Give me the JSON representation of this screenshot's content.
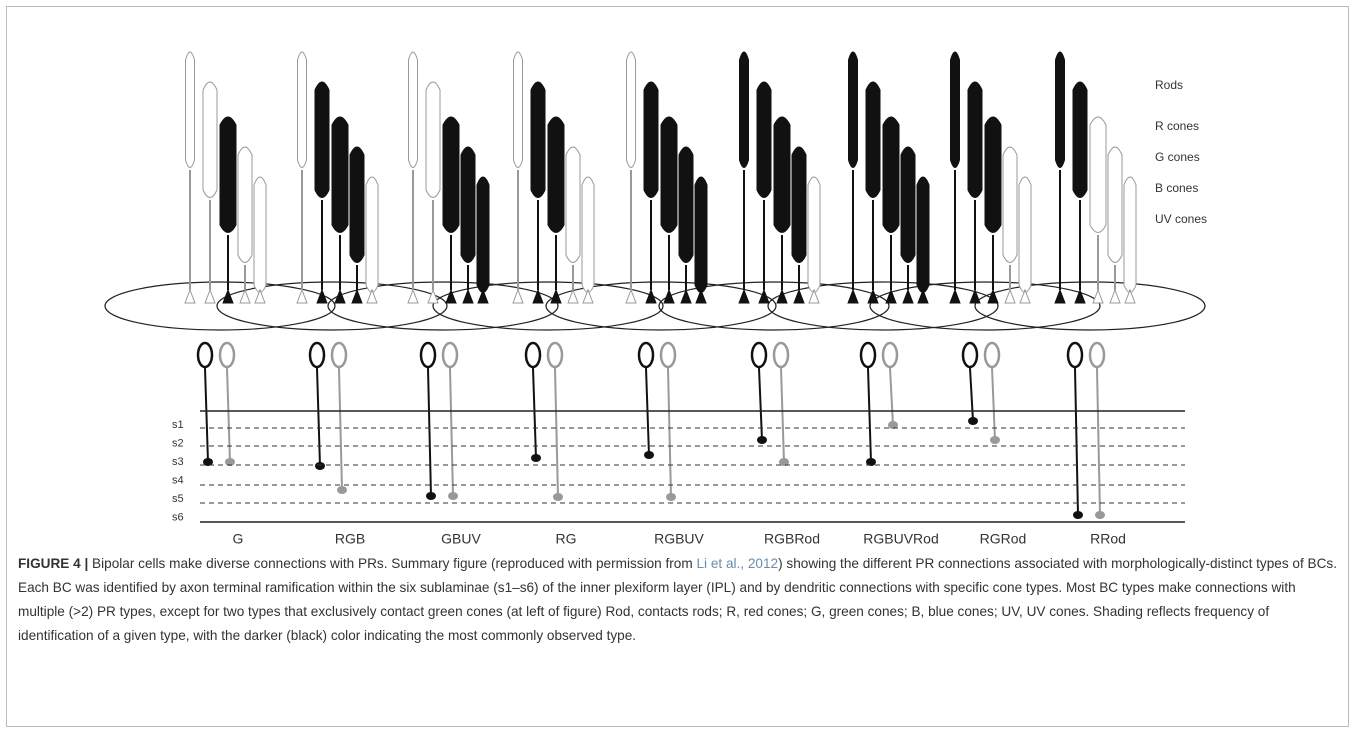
{
  "figure": {
    "legend": [
      "Rods",
      "R cones",
      "G cones",
      "B cones",
      "UV cones"
    ],
    "sublaminae": [
      "s1",
      "s2",
      "s3",
      "s4",
      "s5",
      "s6"
    ],
    "types": [
      "G",
      "RGB",
      "GBUV",
      "RG",
      "RGBUV",
      "RGBRod",
      "RGBUVRod",
      "RGRod",
      "RRod"
    ],
    "caption": {
      "label": "FIGURE 4 |",
      "text_before": " Bipolar cells make diverse connections with PRs. Summary figure (reproduced with permission from ",
      "citation": "Li et al., 2012",
      "text_after": ") showing the different PR connections associated with morphologically-distinct types of BCs. Each BC was identified by axon terminal ramification within the six sublaminae (s1–s6) of the inner plexiform layer (IPL) and by dendritic connections with specific cone types. Most BC types make connections with multiple (>2) PR types, except for two types that exclusively contact green cones (at left of figure) Rod, contacts rods; R, red cones; G, green cones; B, blue cones; UV, UV cones. Shading reflects frequency of identification of a given type, with the darker (black) color indicating the most commonly observed type."
    }
  }
}
